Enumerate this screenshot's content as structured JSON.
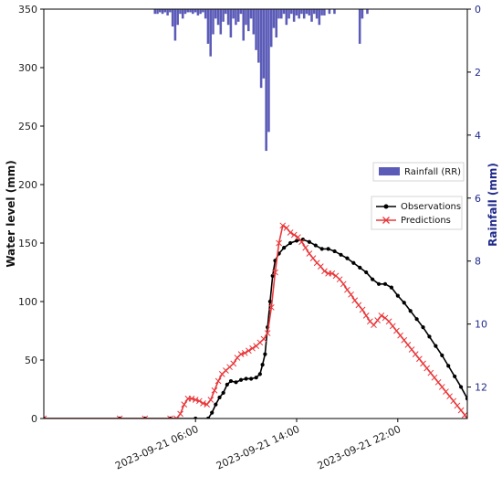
{
  "chart_data": {
    "type": "line",
    "xlabel": "",
    "ylabel": "Water level (mm)",
    "y2label": "Rainfall (mm)",
    "ylim": [
      0,
      350
    ],
    "y2lim": [
      0,
      13
    ],
    "y2_inverted": true,
    "x_range_hours": [
      -6.0,
      27.5
    ],
    "yticks": [
      0,
      50,
      100,
      150,
      200,
      250,
      300,
      350
    ],
    "y2ticks": [
      0,
      2,
      4,
      6,
      8,
      10,
      12
    ],
    "xticks": [
      {
        "label": "2023-09-21 06:00",
        "hour": 6
      },
      {
        "label": "2023-09-21 14:00",
        "hour": 14
      },
      {
        "label": "2023-09-21 22:00",
        "hour": 22
      }
    ],
    "grid": false,
    "legend_rain": {
      "position": "right",
      "label": "Rainfall (RR)"
    },
    "legend_lines": {
      "position": "right",
      "labels": [
        "Observations",
        "Predictions"
      ]
    },
    "colors": {
      "observations": "#000000",
      "predictions": "#e8383b",
      "rainfall": "#5b5bb8",
      "right_axis": "#1f2a8a"
    },
    "series": [
      {
        "name": "Observations",
        "marker": "dot",
        "points": [
          [
            -6.0,
            0
          ],
          [
            0.0,
            0
          ],
          [
            2.0,
            0
          ],
          [
            4.0,
            0
          ],
          [
            6.0,
            0
          ],
          [
            7.0,
            0
          ],
          [
            7.3,
            5
          ],
          [
            7.6,
            12
          ],
          [
            7.9,
            18
          ],
          [
            8.2,
            22
          ],
          [
            8.5,
            29
          ],
          [
            8.8,
            32
          ],
          [
            9.2,
            31
          ],
          [
            9.6,
            33
          ],
          [
            10.0,
            34
          ],
          [
            10.4,
            34
          ],
          [
            10.8,
            35
          ],
          [
            11.1,
            38
          ],
          [
            11.3,
            46
          ],
          [
            11.5,
            55
          ],
          [
            11.7,
            78
          ],
          [
            11.9,
            100
          ],
          [
            12.1,
            122
          ],
          [
            12.3,
            135
          ],
          [
            12.6,
            141
          ],
          [
            13.0,
            146
          ],
          [
            13.5,
            150
          ],
          [
            14.0,
            152
          ],
          [
            14.5,
            153
          ],
          [
            15.0,
            151
          ],
          [
            15.5,
            148
          ],
          [
            16.0,
            145
          ],
          [
            16.5,
            145
          ],
          [
            17.0,
            143
          ],
          [
            17.5,
            140
          ],
          [
            18.0,
            137
          ],
          [
            18.5,
            133
          ],
          [
            19.0,
            129
          ],
          [
            19.5,
            125
          ],
          [
            20.0,
            119
          ],
          [
            20.5,
            115
          ],
          [
            21.0,
            115
          ],
          [
            21.5,
            112
          ],
          [
            22.0,
            105
          ],
          [
            22.5,
            99
          ],
          [
            23.0,
            92
          ],
          [
            23.5,
            85
          ],
          [
            24.0,
            78
          ],
          [
            24.5,
            70
          ],
          [
            25.0,
            62
          ],
          [
            25.5,
            54
          ],
          [
            26.0,
            45
          ],
          [
            26.5,
            36
          ],
          [
            27.0,
            27
          ],
          [
            27.5,
            17
          ],
          [
            28.0,
            8
          ],
          [
            28.3,
            3
          ]
        ]
      },
      {
        "name": "Predictions",
        "marker": "x",
        "points": [
          [
            -6.0,
            0
          ],
          [
            0.0,
            0
          ],
          [
            2.0,
            0
          ],
          [
            4.0,
            0
          ],
          [
            4.5,
            0
          ],
          [
            4.8,
            4
          ],
          [
            5.1,
            12
          ],
          [
            5.4,
            17
          ],
          [
            5.7,
            17
          ],
          [
            6.0,
            16
          ],
          [
            6.3,
            15
          ],
          [
            6.6,
            13
          ],
          [
            6.9,
            12
          ],
          [
            7.2,
            16
          ],
          [
            7.5,
            24
          ],
          [
            7.8,
            32
          ],
          [
            8.1,
            38
          ],
          [
            8.4,
            41
          ],
          [
            8.7,
            44
          ],
          [
            9.0,
            47
          ],
          [
            9.3,
            52
          ],
          [
            9.6,
            55
          ],
          [
            9.9,
            56
          ],
          [
            10.2,
            58
          ],
          [
            10.5,
            60
          ],
          [
            10.8,
            62
          ],
          [
            11.1,
            65
          ],
          [
            11.4,
            68
          ],
          [
            11.7,
            73
          ],
          [
            12.0,
            95
          ],
          [
            12.3,
            125
          ],
          [
            12.6,
            150
          ],
          [
            12.9,
            165
          ],
          [
            13.2,
            163
          ],
          [
            13.5,
            159
          ],
          [
            13.8,
            157
          ],
          [
            14.1,
            155
          ],
          [
            14.4,
            151
          ],
          [
            14.7,
            146
          ],
          [
            15.0,
            141
          ],
          [
            15.3,
            137
          ],
          [
            15.6,
            133
          ],
          [
            15.9,
            130
          ],
          [
            16.2,
            126
          ],
          [
            16.5,
            124
          ],
          [
            16.8,
            124
          ],
          [
            17.1,
            122
          ],
          [
            17.4,
            119
          ],
          [
            17.7,
            115
          ],
          [
            18.0,
            110
          ],
          [
            18.3,
            106
          ],
          [
            18.6,
            101
          ],
          [
            18.9,
            97
          ],
          [
            19.2,
            93
          ],
          [
            19.5,
            88
          ],
          [
            19.8,
            83
          ],
          [
            20.1,
            80
          ],
          [
            20.4,
            84
          ],
          [
            20.7,
            88
          ],
          [
            21.0,
            86
          ],
          [
            21.3,
            83
          ],
          [
            21.6,
            79
          ],
          [
            21.9,
            75
          ],
          [
            22.2,
            71
          ],
          [
            22.5,
            67
          ],
          [
            22.8,
            63
          ],
          [
            23.1,
            59
          ],
          [
            23.4,
            55
          ],
          [
            23.7,
            51
          ],
          [
            24.0,
            47
          ],
          [
            24.3,
            43
          ],
          [
            24.6,
            39
          ],
          [
            24.9,
            35
          ],
          [
            25.2,
            31
          ],
          [
            25.5,
            27
          ],
          [
            25.8,
            23
          ],
          [
            26.1,
            19
          ],
          [
            26.4,
            15
          ],
          [
            26.7,
            11
          ],
          [
            27.0,
            7
          ],
          [
            27.3,
            3
          ],
          [
            27.5,
            0
          ],
          [
            29.0,
            0
          ],
          [
            30.0,
            0
          ],
          [
            30.5,
            0
          ]
        ]
      },
      {
        "name": "Rainfall (RR)",
        "type": "bar",
        "bar_width_hours": 0.2,
        "points": [
          [
            2.8,
            0.15
          ],
          [
            3.0,
            0.15
          ],
          [
            3.2,
            0.1
          ],
          [
            3.4,
            0.15
          ],
          [
            3.6,
            0.1
          ],
          [
            3.8,
            0.2
          ],
          [
            4.0,
            0.1
          ],
          [
            4.2,
            0.55
          ],
          [
            4.4,
            1.0
          ],
          [
            4.6,
            0.5
          ],
          [
            4.8,
            0.15
          ],
          [
            5.0,
            0.3
          ],
          [
            5.2,
            0.15
          ],
          [
            5.4,
            0.1
          ],
          [
            5.6,
            0.1
          ],
          [
            5.8,
            0.15
          ],
          [
            6.0,
            0.1
          ],
          [
            6.2,
            0.2
          ],
          [
            6.4,
            0.15
          ],
          [
            6.6,
            0.1
          ],
          [
            6.8,
            0.3
          ],
          [
            7.0,
            1.1
          ],
          [
            7.2,
            1.5
          ],
          [
            7.4,
            0.8
          ],
          [
            7.6,
            0.3
          ],
          [
            7.8,
            0.5
          ],
          [
            8.0,
            0.8
          ],
          [
            8.2,
            0.4
          ],
          [
            8.4,
            0.15
          ],
          [
            8.6,
            0.5
          ],
          [
            8.8,
            0.9
          ],
          [
            9.0,
            0.3
          ],
          [
            9.2,
            0.5
          ],
          [
            9.4,
            0.4
          ],
          [
            9.6,
            0.15
          ],
          [
            9.8,
            1.0
          ],
          [
            10.0,
            0.5
          ],
          [
            10.2,
            0.7
          ],
          [
            10.4,
            0.3
          ],
          [
            10.6,
            0.8
          ],
          [
            10.8,
            1.3
          ],
          [
            11.0,
            1.7
          ],
          [
            11.2,
            2.5
          ],
          [
            11.4,
            2.2
          ],
          [
            11.6,
            4.5
          ],
          [
            11.8,
            3.9
          ],
          [
            12.0,
            1.2
          ],
          [
            12.2,
            0.6
          ],
          [
            12.4,
            0.9
          ],
          [
            12.6,
            0.3
          ],
          [
            12.8,
            0.3
          ],
          [
            13.0,
            0.15
          ],
          [
            13.2,
            0.5
          ],
          [
            13.4,
            0.3
          ],
          [
            13.6,
            0.15
          ],
          [
            13.8,
            0.4
          ],
          [
            14.0,
            0.2
          ],
          [
            14.2,
            0.3
          ],
          [
            14.4,
            0.15
          ],
          [
            14.6,
            0.3
          ],
          [
            14.8,
            0.15
          ],
          [
            15.0,
            0.2
          ],
          [
            15.2,
            0.4
          ],
          [
            15.4,
            0.15
          ],
          [
            15.6,
            0.3
          ],
          [
            15.8,
            0.5
          ],
          [
            16.0,
            0.2
          ],
          [
            16.2,
            0.2
          ],
          [
            16.6,
            0.15
          ],
          [
            17.0,
            0.15
          ],
          [
            19.0,
            1.1
          ],
          [
            19.2,
            0.3
          ],
          [
            19.6,
            0.15
          ]
        ]
      }
    ]
  }
}
